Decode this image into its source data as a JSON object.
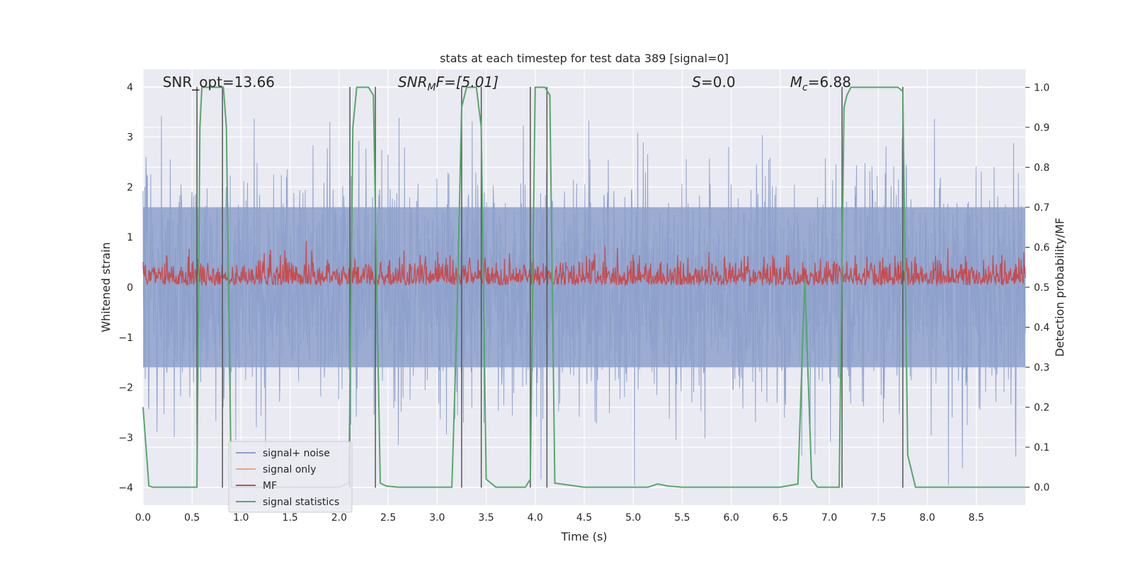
{
  "chart_data": {
    "type": "line",
    "title": "stats at each timestep for test data 389 [signal=0]",
    "xlabel": "Time (s)",
    "ylabel": "Whitened strain",
    "y2label": "Detection probability/MF",
    "xlim": [
      0,
      9
    ],
    "ylim": [
      -4.35,
      4.35
    ],
    "y2lim": [
      -0.045,
      1.045
    ],
    "x_ticks": [
      "0.0",
      "0.5",
      "1.0",
      "1.5",
      "2.0",
      "2.5",
      "3.0",
      "3.5",
      "4.0",
      "4.5",
      "5.0",
      "5.5",
      "6.0",
      "6.5",
      "7.0",
      "7.5",
      "8.0",
      "8.5"
    ],
    "y_ticks": [
      "4",
      "3",
      "2",
      "1",
      "0",
      "−1",
      "−2",
      "−3",
      "−4"
    ],
    "y2_ticks": [
      "1.0",
      "0.9",
      "0.8",
      "0.7",
      "0.6",
      "0.5",
      "0.4",
      "0.3",
      "0.2",
      "0.1",
      "0.0"
    ],
    "grid": true,
    "legend_position": "lower-left",
    "annotations": [
      {
        "text": "SNR_opt=13.66",
        "x": 0.2
      },
      {
        "text": "SNR",
        "sub": "M",
        "rest": "F=[5.01]",
        "x": 2.6
      },
      {
        "text": "S",
        "rest": "=0.0",
        "x": 5.6
      },
      {
        "text": "M",
        "sub": "c",
        "rest": "=6.88",
        "x": 6.6
      }
    ],
    "series": [
      {
        "name": "signal+ noise",
        "color": "#8da0cb",
        "noise": {
          "sigma_strain": 1.0,
          "band": [
            -1.6,
            1.6
          ]
        }
      },
      {
        "name": "signal only",
        "color": "#e8a382",
        "values": []
      },
      {
        "name": "MF",
        "color": "#c44e52",
        "baseline_prob": 0.52,
        "spread_prob": 0.03
      },
      {
        "name": "signal statistics",
        "color": "#55a868",
        "x": [
          0.0,
          0.06,
          0.1,
          0.3,
          0.55,
          0.58,
          0.6,
          0.63,
          0.8,
          0.82,
          0.85,
          0.9,
          1.0,
          1.2,
          1.4,
          1.6,
          1.8,
          2.0,
          2.1,
          2.14,
          2.18,
          2.22,
          2.3,
          2.35,
          2.38,
          2.42,
          2.48,
          2.6,
          2.8,
          3.0,
          3.15,
          3.2,
          3.25,
          3.3,
          3.35,
          3.4,
          3.45,
          3.5,
          3.6,
          3.8,
          3.9,
          3.95,
          4.0,
          4.05,
          4.1,
          4.15,
          4.2,
          4.5,
          5.0,
          5.15,
          5.25,
          5.35,
          5.5,
          6.0,
          6.5,
          6.68,
          6.75,
          6.82,
          6.88,
          6.95,
          7.1,
          7.15,
          7.18,
          7.22,
          7.3,
          7.5,
          7.7,
          7.75,
          7.8,
          7.88,
          8.0,
          8.5,
          9.0
        ],
        "values": [
          0.2,
          0.003,
          0.0,
          0.0,
          0.0,
          0.9,
          1.0,
          1.0,
          1.0,
          1.0,
          0.9,
          0.0,
          0.0,
          0.0,
          0.0,
          0.0,
          0.0,
          0.0,
          0.01,
          0.9,
          1.0,
          1.0,
          1.0,
          0.98,
          0.55,
          0.01,
          0.003,
          0.0,
          0.0,
          0.0,
          0.0,
          0.4,
          0.95,
          1.0,
          1.0,
          1.0,
          0.9,
          0.02,
          0.0,
          0.0,
          0.0,
          0.02,
          1.0,
          1.0,
          1.0,
          0.98,
          0.01,
          0.0,
          0.0,
          0.0,
          0.008,
          0.003,
          0.0,
          0.0,
          0.0,
          0.008,
          0.52,
          0.02,
          0.0,
          0.0,
          0.0,
          0.95,
          0.98,
          1.0,
          1.0,
          1.0,
          1.0,
          0.99,
          0.08,
          0.0,
          0.0,
          0.0,
          0.0
        ]
      }
    ],
    "marker_lines_x": [
      0.55,
      0.81,
      2.11,
      2.37,
      3.25,
      3.45,
      3.95,
      4.12,
      7.13,
      7.75
    ]
  }
}
